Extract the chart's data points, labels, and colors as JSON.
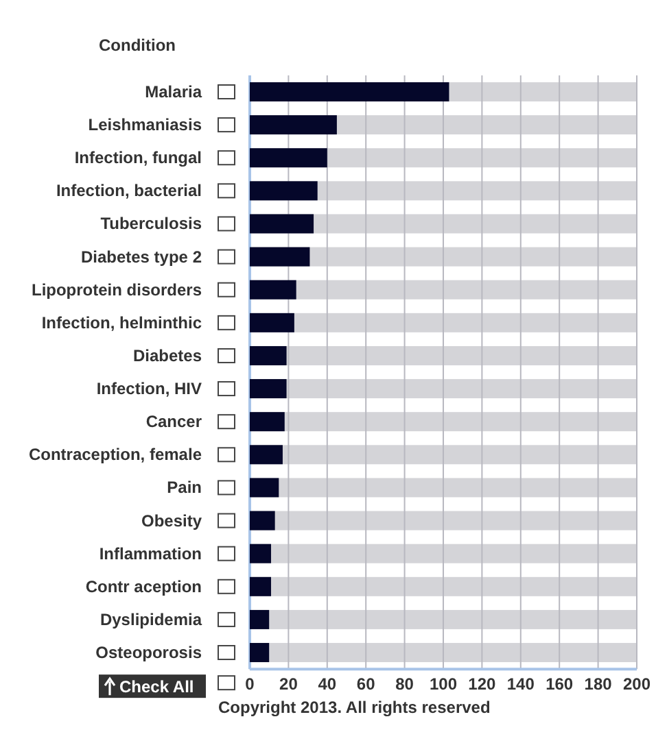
{
  "chart_data": {
    "type": "bar",
    "orientation": "horizontal",
    "ylabel": "Condition",
    "categories": [
      "Malaria",
      "Leishmaniasis",
      "Infection, fungal",
      "Infection, bacterial",
      "Tuberculosis",
      "Diabetes type 2",
      "Lipoprotein disorders",
      "Infection, helminthic",
      "Diabetes",
      "Infection, HIV",
      "Cancer",
      "Contraception, female",
      "Pain",
      "Obesity",
      "Inflammation",
      "Contr aception",
      "Dyslipidemia",
      "Osteoporosis"
    ],
    "values": [
      103,
      45,
      40,
      35,
      33,
      31,
      24,
      23,
      19,
      19,
      18,
      17,
      15,
      13,
      11,
      11,
      10,
      10
    ],
    "color": "#05072a",
    "xlim": [
      0,
      200
    ],
    "xticks": [
      0,
      20,
      40,
      60,
      80,
      100,
      120,
      140,
      160,
      180,
      200
    ],
    "grid": "x",
    "annotations": [
      "Check All",
      "Copyright 2013. All rights reserved"
    ]
  }
}
